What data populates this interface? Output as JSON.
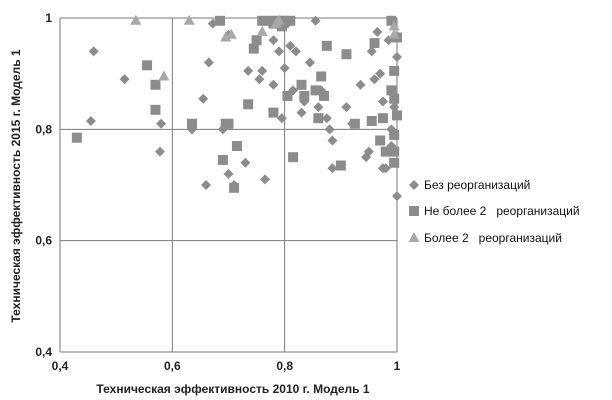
{
  "chart_data": {
    "type": "scatter",
    "xlabel": "Техническая эффективность 2010 г. Модель 1",
    "ylabel": "Техническая эффективность 2015 г. Модель 1",
    "xlim": [
      0.4,
      1.0
    ],
    "ylim": [
      0.4,
      1.0
    ],
    "x_ticks": [
      0.4,
      0.6,
      0.8,
      1.0
    ],
    "y_ticks": [
      0.4,
      0.6,
      0.8,
      1.0
    ],
    "x_tick_labels": [
      "0,4",
      "0,6",
      "0,8",
      "1"
    ],
    "y_tick_labels": [
      "0,4",
      "0,6",
      "0,8",
      "1"
    ],
    "grid": true,
    "legend_position": "right",
    "series": [
      {
        "name": "Без реорганизаций",
        "marker": "diamond",
        "color": "#8c8c8c",
        "points": [
          [
            0.46,
            0.94
          ],
          [
            0.455,
            0.815
          ],
          [
            0.515,
            0.89
          ],
          [
            0.58,
            0.81
          ],
          [
            0.578,
            0.76
          ],
          [
            0.635,
            0.8
          ],
          [
            0.655,
            0.855
          ],
          [
            0.66,
            0.7
          ],
          [
            0.665,
            0.92
          ],
          [
            0.672,
            0.99
          ],
          [
            0.69,
            0.8
          ],
          [
            0.7,
            0.97
          ],
          [
            0.7,
            0.72
          ],
          [
            0.71,
            0.7
          ],
          [
            0.73,
            0.74
          ],
          [
            0.735,
            0.905
          ],
          [
            0.755,
            0.89
          ],
          [
            0.76,
            0.905
          ],
          [
            0.765,
            0.71
          ],
          [
            0.78,
            0.88
          ],
          [
            0.78,
            0.96
          ],
          [
            0.79,
            0.94
          ],
          [
            0.795,
            0.82
          ],
          [
            0.8,
            0.91
          ],
          [
            0.805,
            0.99
          ],
          [
            0.81,
            0.95
          ],
          [
            0.815,
            0.87
          ],
          [
            0.82,
            0.94
          ],
          [
            0.83,
            0.83
          ],
          [
            0.835,
            0.85
          ],
          [
            0.845,
            0.92
          ],
          [
            0.855,
            0.995
          ],
          [
            0.86,
            0.84
          ],
          [
            0.865,
            0.87
          ],
          [
            0.87,
            0.86
          ],
          [
            0.875,
            0.82
          ],
          [
            0.88,
            0.8
          ],
          [
            0.885,
            0.78
          ],
          [
            0.885,
            0.73
          ],
          [
            0.91,
            0.84
          ],
          [
            0.92,
            0.81
          ],
          [
            0.935,
            0.88
          ],
          [
            0.945,
            0.75
          ],
          [
            0.95,
            0.76
          ],
          [
            0.955,
            0.94
          ],
          [
            0.96,
            0.89
          ],
          [
            0.965,
            0.975
          ],
          [
            0.97,
            0.9
          ],
          [
            0.975,
            0.85
          ],
          [
            0.98,
            0.73
          ],
          [
            0.985,
            0.96
          ],
          [
            0.99,
            0.8
          ],
          [
            0.995,
            0.84
          ],
          [
            1.0,
            0.68
          ],
          [
            1.0,
            0.93
          ],
          [
            0.99,
            0.77
          ],
          [
            0.975,
            0.73
          ]
        ]
      },
      {
        "name": "Не более 2   реорганизаций",
        "marker": "square",
        "color": "#8c8c8c",
        "points": [
          [
            0.43,
            0.785
          ],
          [
            0.555,
            0.915
          ],
          [
            0.57,
            0.88
          ],
          [
            0.57,
            0.835
          ],
          [
            0.635,
            0.81
          ],
          [
            0.685,
            0.995
          ],
          [
            0.69,
            0.745
          ],
          [
            0.695,
            0.81
          ],
          [
            0.7,
            0.81
          ],
          [
            0.71,
            0.695
          ],
          [
            0.715,
            0.77
          ],
          [
            0.735,
            0.845
          ],
          [
            0.745,
            0.945
          ],
          [
            0.75,
            0.96
          ],
          [
            0.76,
            0.995
          ],
          [
            0.775,
            0.995
          ],
          [
            0.78,
            0.99
          ],
          [
            0.79,
            0.995
          ],
          [
            0.795,
            0.985
          ],
          [
            0.8,
            0.995
          ],
          [
            0.81,
            0.995
          ],
          [
            0.78,
            0.83
          ],
          [
            0.805,
            0.86
          ],
          [
            0.815,
            0.75
          ],
          [
            0.83,
            0.88
          ],
          [
            0.835,
            0.86
          ],
          [
            0.855,
            0.87
          ],
          [
            0.86,
            0.82
          ],
          [
            0.865,
            0.895
          ],
          [
            0.87,
            0.86
          ],
          [
            0.875,
            0.95
          ],
          [
            0.9,
            0.735
          ],
          [
            0.91,
            0.935
          ],
          [
            0.925,
            0.81
          ],
          [
            0.955,
            0.815
          ],
          [
            0.96,
            0.955
          ],
          [
            0.97,
            0.78
          ],
          [
            0.975,
            0.82
          ],
          [
            0.98,
            0.76
          ],
          [
            0.99,
            0.995
          ],
          [
            0.995,
            0.905
          ],
          [
            0.995,
            0.855
          ],
          [
            0.99,
            0.87
          ],
          [
            0.995,
            0.79
          ],
          [
            0.995,
            0.76
          ],
          [
            0.995,
            0.74
          ],
          [
            1.0,
            0.825
          ],
          [
            1.0,
            0.965
          ]
        ]
      },
      {
        "name": "Более 2   реорганизаций",
        "marker": "triangle",
        "color": "#a8a8a8",
        "points": [
          [
            0.535,
            0.995
          ],
          [
            0.585,
            0.895
          ],
          [
            0.63,
            0.995
          ],
          [
            0.695,
            0.965
          ],
          [
            0.705,
            0.97
          ],
          [
            0.76,
            0.975
          ],
          [
            0.785,
            0.99
          ],
          [
            0.79,
            0.995
          ],
          [
            0.995,
            0.97
          ],
          [
            0.995,
            0.985
          ]
        ]
      }
    ]
  }
}
